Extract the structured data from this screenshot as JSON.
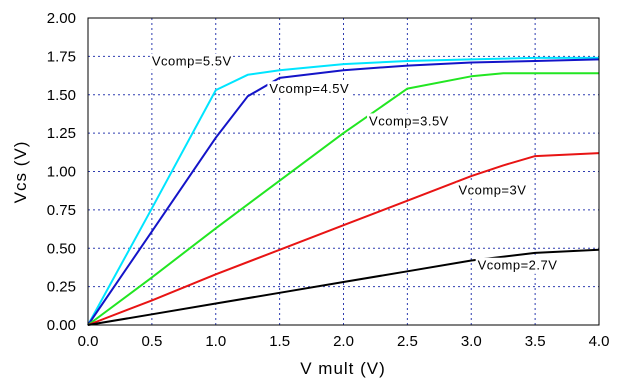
{
  "chart_data": {
    "type": "line",
    "xlabel": "V mult (V)",
    "ylabel": "Vcs (V)",
    "xlim": [
      0,
      4
    ],
    "ylim": [
      0,
      2
    ],
    "x_ticks": [
      "0.0",
      "0.5",
      "1.0",
      "1.5",
      "2.0",
      "2.5",
      "3.0",
      "3.5",
      "4.0"
    ],
    "y_ticks": [
      "0.00",
      "0.25",
      "0.50",
      "0.75",
      "1.00",
      "1.25",
      "1.50",
      "1.75",
      "2.00"
    ],
    "grid": true,
    "series": [
      {
        "name": "Vcomp=5.5V",
        "color": "#00e5ff",
        "x": [
          0,
          0.5,
          1.0,
          1.25,
          1.5,
          2.0,
          2.5,
          3.0,
          3.5,
          4.0
        ],
        "y": [
          0,
          0.76,
          1.53,
          1.63,
          1.66,
          1.7,
          1.72,
          1.73,
          1.74,
          1.74
        ]
      },
      {
        "name": "Vcomp=4.5V",
        "color": "#1414c8",
        "x": [
          0,
          0.5,
          1.0,
          1.25,
          1.5,
          2.0,
          2.5,
          3.0,
          3.5,
          4.0
        ],
        "y": [
          0,
          0.61,
          1.22,
          1.49,
          1.61,
          1.66,
          1.69,
          1.71,
          1.72,
          1.73
        ]
      },
      {
        "name": "Vcomp=3.5V",
        "color": "#22e622",
        "x": [
          0,
          0.5,
          1.0,
          1.5,
          2.0,
          2.5,
          3.0,
          3.25,
          3.5,
          4.0
        ],
        "y": [
          0,
          0.31,
          0.63,
          0.94,
          1.25,
          1.54,
          1.62,
          1.64,
          1.64,
          1.64
        ]
      },
      {
        "name": "Vcomp=3V",
        "color": "#e81414",
        "x": [
          0,
          0.5,
          1.0,
          1.5,
          2.0,
          2.5,
          3.0,
          3.25,
          3.5,
          4.0
        ],
        "y": [
          0,
          0.16,
          0.33,
          0.49,
          0.65,
          0.81,
          0.97,
          1.04,
          1.1,
          1.12
        ]
      },
      {
        "name": "Vcomp=2.7V",
        "color": "#000000",
        "x": [
          0,
          0.5,
          1.0,
          1.5,
          2.0,
          2.5,
          3.0,
          3.5,
          4.0
        ],
        "y": [
          0,
          0.07,
          0.14,
          0.21,
          0.28,
          0.35,
          0.42,
          0.47,
          0.49
        ]
      }
    ]
  }
}
